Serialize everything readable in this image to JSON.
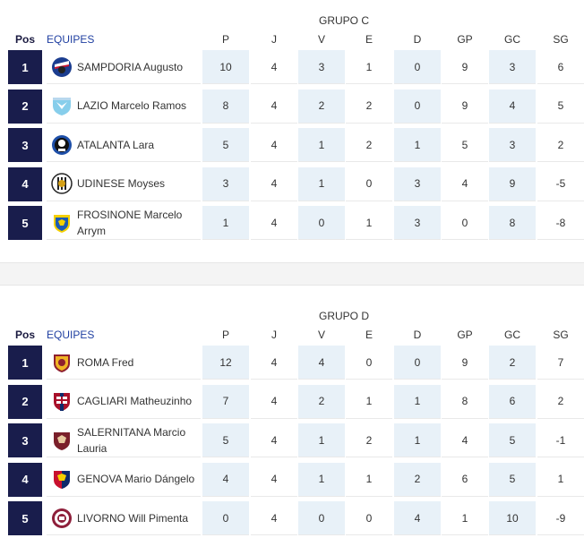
{
  "group_c": {
    "title": "GRUPO C",
    "headers": {
      "pos": "Pos",
      "team": "EQUIPES",
      "p": "P",
      "j": "J",
      "v": "V",
      "e": "E",
      "d": "D",
      "gp": "GP",
      "gc": "GC",
      "sg": "SG"
    },
    "rows": [
      {
        "pos": "1",
        "team": "SAMPDORIA Augusto",
        "crest": "sampdoria-crest",
        "p": "10",
        "j": "4",
        "v": "3",
        "e": "1",
        "d": "0",
        "gp": "9",
        "gc": "3",
        "sg": "6"
      },
      {
        "pos": "2",
        "team": "LAZIO Marcelo Ramos",
        "crest": "lazio-crest",
        "p": "8",
        "j": "4",
        "v": "2",
        "e": "2",
        "d": "0",
        "gp": "9",
        "gc": "4",
        "sg": "5"
      },
      {
        "pos": "3",
        "team": "ATALANTA Lara",
        "crest": "atalanta-crest",
        "p": "5",
        "j": "4",
        "v": "1",
        "e": "2",
        "d": "1",
        "gp": "5",
        "gc": "3",
        "sg": "2"
      },
      {
        "pos": "4",
        "team": "UDINESE Moyses",
        "crest": "udinese-crest",
        "p": "3",
        "j": "4",
        "v": "1",
        "e": "0",
        "d": "3",
        "gp": "4",
        "gc": "9",
        "sg": "-5"
      },
      {
        "pos": "5",
        "team": "FROSINONE Marcelo Arrym",
        "crest": "frosinone-crest",
        "p": "1",
        "j": "4",
        "v": "0",
        "e": "1",
        "d": "3",
        "gp": "0",
        "gc": "8",
        "sg": "-8"
      }
    ]
  },
  "group_d": {
    "title": "GRUPO D",
    "headers": {
      "pos": "Pos",
      "team": "EQUIPES",
      "p": "P",
      "j": "J",
      "v": "V",
      "e": "E",
      "d": "D",
      "gp": "GP",
      "gc": "GC",
      "sg": "SG"
    },
    "rows": [
      {
        "pos": "1",
        "team": "ROMA Fred",
        "crest": "roma-crest",
        "p": "12",
        "j": "4",
        "v": "4",
        "e": "0",
        "d": "0",
        "gp": "9",
        "gc": "2",
        "sg": "7"
      },
      {
        "pos": "2",
        "team": "CAGLIARI Matheuzinho",
        "crest": "cagliari-crest",
        "p": "7",
        "j": "4",
        "v": "2",
        "e": "1",
        "d": "1",
        "gp": "8",
        "gc": "6",
        "sg": "2"
      },
      {
        "pos": "3",
        "team": "SALERNITANA Marcio Lauria",
        "crest": "salernitana-crest",
        "p": "5",
        "j": "4",
        "v": "1",
        "e": "2",
        "d": "1",
        "gp": "4",
        "gc": "5",
        "sg": "-1"
      },
      {
        "pos": "4",
        "team": "GENOVA Mario Dángelo",
        "crest": "genoa-crest",
        "p": "4",
        "j": "4",
        "v": "1",
        "e": "1",
        "d": "2",
        "gp": "6",
        "gc": "5",
        "sg": "1"
      },
      {
        "pos": "5",
        "team": "LIVORNO Will Pimenta",
        "crest": "livorno-crest",
        "p": "0",
        "j": "4",
        "v": "0",
        "e": "0",
        "d": "4",
        "gp": "1",
        "gc": "10",
        "sg": "-9"
      }
    ]
  },
  "colors": {
    "rank_bg": "#191d4c",
    "highlight": "#e8f1f8",
    "equipes_link": "#1f3fa1"
  }
}
